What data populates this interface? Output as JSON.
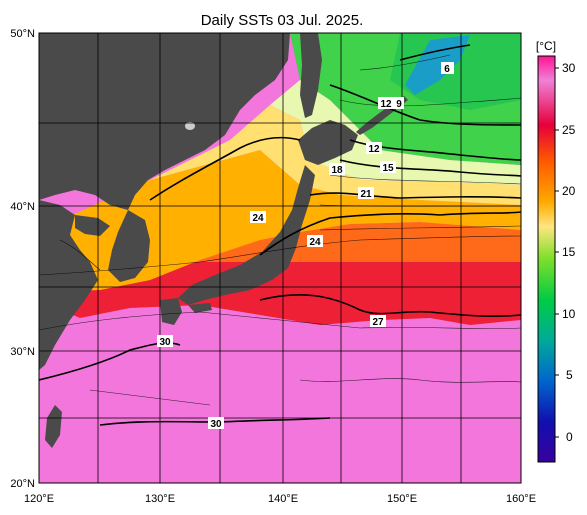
{
  "title": "Daily SSTs 03 Jul. 2025.",
  "map": {
    "lon_range": [
      120,
      160
    ],
    "lat_range": [
      20,
      50
    ],
    "lat_labels": [
      "50°N",
      "40°N",
      "30°N",
      "20°N"
    ],
    "lon_labels": [
      "120°E",
      "130°E",
      "140°E",
      "150°E",
      "160°E"
    ],
    "land_color": "#4a4a4a",
    "grid": true
  },
  "colorbar": {
    "unit": "[°C]",
    "ticks": [
      "30",
      "25",
      "20",
      "15",
      "10",
      "5",
      "0"
    ],
    "range": [
      -2,
      31
    ]
  },
  "contour_labels": [
    "6",
    "12",
    "9",
    "12",
    "15",
    "18",
    "21",
    "24",
    "24",
    "27",
    "30",
    "30"
  ]
}
